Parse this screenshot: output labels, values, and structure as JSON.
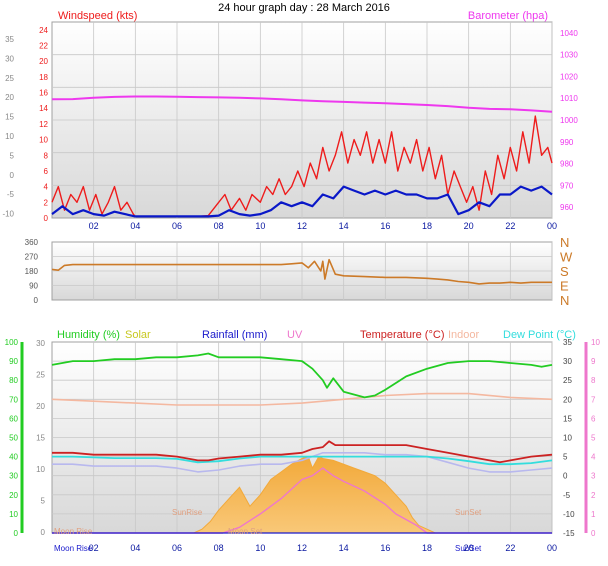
{
  "title": "24 hour graph day : 28 March 2016",
  "colors": {
    "bg": "#ffffff",
    "plot_top": "#ffffff",
    "plot_bottom": "#d8d8d8",
    "grid": "#c8c8c8",
    "windspeed": "#ee1c1c",
    "wind_avg": "#0a18c8",
    "barometer": "#ee38ee",
    "gust_grey": "#b4b4b4",
    "direction": "#cc7a28",
    "humidity": "#22cc22",
    "solar": "#f2a93a",
    "solar_fill": "#f9c878",
    "rain": "#1a1acc",
    "uv": "#ee77cc",
    "temperature": "#cc2222",
    "indoor": "#f4b8a0",
    "dewpoint": "#33dddd",
    "feels": "#b8b8ee",
    "axis_green": "#22cc22",
    "axis_pink": "#ee77cc",
    "axis_grey": "#888888",
    "dir_letters": "#cc7a28"
  },
  "chart_data": [
    {
      "type": "line",
      "panel": "wind",
      "left_axis_label": "Windspeed (kts)",
      "right_axis_label": "Barometer (hpa)",
      "x_ticks": [
        "02",
        "04",
        "06",
        "08",
        "10",
        "12",
        "14",
        "16",
        "18",
        "20",
        "22",
        "00"
      ],
      "left_ticks": [
        "24",
        "22",
        "20",
        "18",
        "16",
        "14",
        "12",
        "10",
        "8",
        "6",
        "4",
        "2",
        "0"
      ],
      "left_grey_ticks": [
        "35",
        "30",
        "25",
        "20",
        "15",
        "10",
        "5",
        "0",
        "-5",
        "-10"
      ],
      "right_ticks": [
        "1040",
        "1030",
        "1020",
        "1010",
        "1000",
        "990",
        "980",
        "970",
        "960"
      ],
      "ylim_wind": [
        0,
        25
      ],
      "ylim_baro": [
        955,
        1045
      ],
      "series": [
        {
          "name": "Barometer",
          "axis": "baro",
          "x": [
            0,
            1,
            2,
            3,
            4,
            5,
            6,
            7,
            8,
            9,
            10,
            11,
            12,
            13,
            14,
            15,
            16,
            17,
            18,
            19,
            20,
            21,
            22,
            23,
            24
          ],
          "values": [
            1009.5,
            1009.6,
            1010.2,
            1010.6,
            1010.8,
            1010.8,
            1010.7,
            1010.5,
            1010.4,
            1010.2,
            1009.9,
            1009.5,
            1009.0,
            1008.6,
            1008.3,
            1008.0,
            1007.7,
            1007.3,
            1006.9,
            1006.4,
            1005.6,
            1005.1,
            1004.9,
            1004.4,
            1003.8
          ]
        },
        {
          "name": "Wind average",
          "axis": "wind",
          "x": [
            0,
            0.5,
            1,
            1.5,
            2,
            2.5,
            3,
            3.5,
            4,
            5,
            6,
            7,
            7.5,
            8,
            8.5,
            9,
            9.5,
            10,
            10.5,
            11,
            11.5,
            12,
            12.5,
            13,
            13.5,
            14,
            14.5,
            15,
            15.5,
            16,
            16.5,
            17,
            17.5,
            18,
            18.5,
            19,
            19.5,
            20,
            20.5,
            21,
            21.5,
            22,
            22.5,
            23,
            23.5,
            24
          ],
          "values": [
            0.5,
            1.5,
            0.5,
            1.0,
            0.5,
            0.3,
            0.8,
            0.5,
            0.2,
            0.2,
            0.2,
            0.2,
            0.2,
            0.3,
            1.0,
            0.5,
            0.3,
            0.5,
            1.0,
            2.0,
            1.5,
            2.0,
            1.5,
            3.0,
            2.5,
            4.0,
            3.5,
            3.0,
            3.5,
            3.0,
            3.5,
            3.0,
            3.0,
            2.5,
            2.5,
            3.0,
            0.5,
            1.0,
            2.0,
            1.5,
            3.0,
            3.0,
            4.0,
            3.5,
            4.0,
            3.0
          ]
        },
        {
          "name": "Windspeed",
          "axis": "wind",
          "x": [
            0,
            0.3,
            0.6,
            0.9,
            1.2,
            1.5,
            1.8,
            2.1,
            2.4,
            2.7,
            3,
            3.3,
            3.6,
            3.9,
            4,
            5,
            6,
            7,
            7.5,
            8,
            8.3,
            8.6,
            9,
            9.3,
            9.6,
            10,
            10.3,
            10.6,
            10.9,
            11.2,
            11.5,
            11.8,
            12.1,
            12.4,
            12.7,
            13,
            13.3,
            13.6,
            13.9,
            14.2,
            14.5,
            14.8,
            15.1,
            15.4,
            15.7,
            16,
            16.3,
            16.6,
            16.9,
            17.2,
            17.5,
            17.8,
            18.1,
            18.4,
            18.7,
            19,
            19.3,
            19.6,
            19.9,
            20.2,
            20.5,
            20.8,
            21.1,
            21.4,
            21.7,
            22,
            22.3,
            22.6,
            22.9,
            23.2,
            23.5,
            23.8,
            24
          ],
          "values": [
            2,
            4,
            1,
            3,
            2,
            4,
            1,
            3,
            0.5,
            2,
            4,
            1,
            2,
            0.5,
            0.2,
            0.2,
            0.2,
            0.2,
            0.3,
            2,
            3,
            1,
            2.5,
            1,
            3,
            2,
            4,
            3,
            5,
            3,
            4,
            6,
            4,
            7,
            5,
            9,
            6,
            8,
            11,
            7,
            10,
            8,
            11,
            7,
            10,
            7,
            11,
            6,
            9,
            7,
            10,
            6,
            9,
            5,
            8,
            3,
            6,
            4,
            2,
            4,
            1,
            6,
            3,
            8,
            5,
            9,
            6,
            11,
            7,
            13,
            8,
            9,
            7
          ]
        }
      ]
    },
    {
      "type": "line",
      "panel": "direction",
      "left_ticks": [
        "360",
        "270",
        "180",
        "90",
        "0"
      ],
      "right_labels": [
        "N",
        "W",
        "S",
        "E",
        "N"
      ],
      "ylim": [
        0,
        360
      ],
      "series": [
        {
          "name": "Wind direction",
          "x": [
            0,
            0.3,
            0.6,
            1,
            2,
            3,
            4,
            5,
            6,
            7,
            8,
            9,
            10,
            11,
            11.5,
            12,
            12.3,
            12.6,
            12.9,
            13,
            13.1,
            13.3,
            13.6,
            14,
            15,
            16,
            17,
            18,
            18.5,
            19,
            19.5,
            20,
            20.5,
            21,
            21.5,
            22,
            22.5,
            23,
            23.5,
            24
          ],
          "values": [
            190,
            185,
            215,
            220,
            220,
            220,
            220,
            220,
            220,
            220,
            220,
            220,
            220,
            220,
            225,
            230,
            200,
            240,
            180,
            240,
            130,
            250,
            160,
            150,
            145,
            140,
            140,
            135,
            130,
            125,
            115,
            110,
            100,
            105,
            105,
            110,
            105,
            110,
            110,
            110
          ]
        }
      ]
    },
    {
      "type": "line",
      "panel": "climate",
      "legend": [
        "Humidity  (%)",
        "Solar",
        "Rainfall (mm)",
        "UV",
        "Temperature (°C)",
        "Indoor",
        "Dew Point (°C)"
      ],
      "left_ticks": [
        "100",
        "90",
        "80",
        "70",
        "60",
        "50",
        "40",
        "30",
        "20",
        "10",
        "0"
      ],
      "left_grey_ticks": [
        "30",
        "25",
        "20",
        "15",
        "10",
        "5",
        "0"
      ],
      "right_ticks": [
        "35",
        "30",
        "25",
        "20",
        "15",
        "10",
        "5",
        "0",
        "-5",
        "-10",
        "-15"
      ],
      "right_pink_ticks": [
        "10",
        "9",
        "8",
        "7",
        "6",
        "5",
        "4",
        "3",
        "2",
        "1",
        "0"
      ],
      "x_ticks": [
        "02",
        "04",
        "06",
        "08",
        "10",
        "12",
        "14",
        "16",
        "18",
        "20",
        "22",
        "00"
      ],
      "annotations": [
        "Moon Rise",
        "SunRise",
        "SunSet",
        "SunSet",
        "Moon Rise",
        "Moon Set"
      ],
      "ylim_humidity": [
        0,
        100
      ],
      "ylim_temp": [
        -15,
        35
      ],
      "series": [
        {
          "name": "Humidity",
          "axis": "humidity",
          "x": [
            0,
            1,
            2,
            3,
            4,
            5,
            6,
            7,
            7.5,
            8,
            9,
            10,
            11,
            12,
            12.5,
            13,
            13.2,
            13.5,
            14,
            15,
            15.5,
            16,
            17,
            18,
            19,
            20,
            21,
            22,
            23,
            23.5,
            24
          ],
          "values": [
            88,
            90,
            90,
            91,
            91,
            92,
            92,
            93,
            94,
            92,
            92,
            92,
            91,
            90,
            86,
            80,
            76,
            81,
            74,
            71,
            72,
            75,
            82,
            86,
            89,
            90,
            90,
            89,
            88,
            87,
            88
          ]
        },
        {
          "name": "Indoor",
          "axis": "temp",
          "x": [
            0,
            2,
            4,
            6,
            8,
            10,
            12,
            14,
            16,
            18,
            20,
            22,
            24
          ],
          "values": [
            20,
            19.5,
            19,
            18.5,
            18.5,
            18.5,
            19,
            20,
            21,
            21.5,
            21.5,
            20.5,
            20
          ]
        },
        {
          "name": "Temperature",
          "axis": "temp",
          "x": [
            0,
            1,
            2,
            3,
            4,
            5,
            6,
            7,
            7.5,
            8,
            9,
            10,
            11,
            12,
            12.5,
            13,
            13.3,
            13.6,
            14,
            15,
            16,
            17,
            18,
            19,
            20,
            21,
            21.5,
            22,
            23,
            24
          ],
          "values": [
            6,
            6,
            5.5,
            5.5,
            5.5,
            5.5,
            5,
            4,
            4,
            4.5,
            5,
            5.5,
            5.5,
            6,
            7,
            7.5,
            9,
            8,
            8,
            8,
            8,
            8,
            7,
            6,
            5,
            4,
            3.5,
            4,
            5,
            5.5
          ]
        },
        {
          "name": "Dew Point",
          "axis": "temp",
          "x": [
            0,
            1,
            2,
            3,
            4,
            5,
            6,
            7,
            8,
            9,
            10,
            11,
            12,
            13,
            14,
            15,
            16,
            17,
            18,
            19,
            20,
            21,
            22,
            23,
            24
          ],
          "values": [
            5,
            5,
            4.8,
            4.6,
            4.6,
            4.6,
            4.4,
            3.5,
            3.8,
            4.5,
            5,
            5,
            5,
            5,
            5,
            5,
            5,
            5,
            5,
            4.5,
            3.8,
            3,
            3,
            3.3,
            4
          ]
        },
        {
          "name": "Feels like",
          "axis": "temp",
          "x": [
            0,
            1,
            2,
            3,
            4,
            5,
            6,
            7,
            8,
            9,
            10,
            11,
            12,
            13,
            14,
            15,
            16,
            17,
            18,
            19,
            20,
            21,
            22,
            23,
            24
          ],
          "values": [
            3,
            3,
            2.5,
            2.5,
            2.5,
            2.5,
            2,
            1,
            1.5,
            2.5,
            3,
            3,
            4,
            6,
            6,
            6,
            5.5,
            5.5,
            5,
            3.5,
            2,
            1,
            1,
            1.5,
            2
          ]
        },
        {
          "name": "Solar",
          "axis": "temp",
          "x": [
            0,
            6.8,
            7.2,
            7.6,
            8,
            8.5,
            9,
            9.5,
            10,
            10.5,
            11,
            11.5,
            12,
            12.3,
            12.5,
            12.8,
            13,
            13.5,
            14,
            14.5,
            15,
            15.5,
            16,
            16.5,
            17,
            17.3,
            17.6,
            18,
            18.4,
            24
          ],
          "values": [
            -15,
            -15,
            -14,
            -12,
            -9,
            -6,
            -3,
            -8,
            -5,
            -1,
            1,
            3,
            4.5,
            5,
            2,
            5,
            4.5,
            4,
            3,
            2,
            1,
            0,
            -2,
            -5,
            -8,
            -11,
            -13,
            -14,
            -15,
            -15
          ]
        },
        {
          "name": "UV",
          "axis": "uv",
          "x": [
            0,
            8.2,
            9,
            10,
            11,
            12,
            12.5,
            13,
            13.5,
            14,
            15,
            16,
            16.5,
            17,
            17.5,
            18,
            24
          ],
          "values": [
            0,
            0,
            0.3,
            1,
            1.8,
            2.8,
            3,
            3.4,
            3,
            2.7,
            2.2,
            1.5,
            1,
            0.7,
            0.4,
            0,
            0
          ]
        },
        {
          "name": "Rainfall",
          "axis": "humidity",
          "x": [
            0,
            24
          ],
          "values": [
            0,
            0
          ]
        }
      ]
    }
  ]
}
